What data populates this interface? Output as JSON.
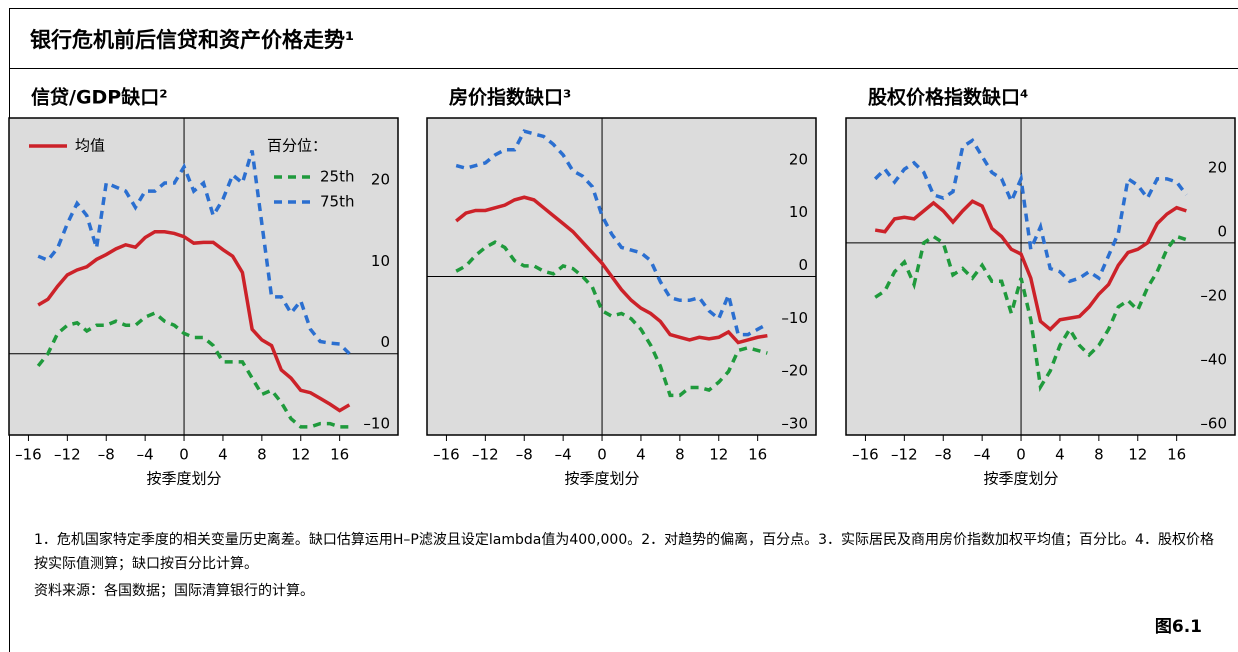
{
  "title": "银行危机前后信贷和资产价格走势¹",
  "chart_data": [
    {
      "type": "line",
      "title": "信贷/GDP缺口²",
      "x_label": "按季度划分",
      "legend": true,
      "legend_title": "百分位：",
      "zero_lines": true,
      "x": [
        -15,
        -14,
        -13,
        -12,
        -11,
        -10,
        -9,
        -8,
        -7,
        -6,
        -5,
        -4,
        -3,
        -2,
        -1,
        0,
        1,
        2,
        3,
        4,
        5,
        6,
        7,
        8,
        9,
        10,
        11,
        12,
        13,
        14,
        15,
        16,
        17
      ],
      "xlim": [
        -18,
        22
      ],
      "ylim": [
        -10,
        29
      ],
      "xticks": [
        {
          "value": -16,
          "label": "–16"
        },
        {
          "value": -12,
          "label": "–12"
        },
        {
          "value": -8,
          "label": "–8"
        },
        {
          "value": -4,
          "label": "–4"
        },
        0,
        4,
        8,
        12,
        16
      ],
      "yticks": [
        {
          "value": -10,
          "label": "–10"
        },
        0,
        10,
        20
      ],
      "series": [
        {
          "name": "均值",
          "color": "#cc2229",
          "dashed": false,
          "values": [
            6,
            6.7,
            8.3,
            9.7,
            10.3,
            10.7,
            11.6,
            12.2,
            12.9,
            13.4,
            13.1,
            14.3,
            15,
            15,
            14.8,
            14.4,
            13.6,
            13.7,
            13.7,
            12.8,
            12,
            10,
            3,
            1.7,
            1,
            -2,
            -3,
            -4.5,
            -4.8,
            -5.5,
            -6.2,
            -7,
            -6.3
          ]
        },
        {
          "name": "25th",
          "color": "#1f9a3c",
          "dashed": true,
          "values": [
            -1.5,
            0,
            2.5,
            3.5,
            3.8,
            2.8,
            3.5,
            3.5,
            4,
            3.5,
            3.5,
            4.5,
            5,
            4,
            3.5,
            2.5,
            2,
            2,
            1,
            -1,
            -1,
            -1,
            -3,
            -5,
            -4.5,
            -6,
            -8,
            -9,
            -9,
            -8.6,
            -8.6,
            -9,
            -9
          ]
        },
        {
          "name": "75th",
          "color": "#2b6fd0",
          "dashed": true,
          "values": [
            12,
            11.5,
            13,
            16,
            18.5,
            17,
            13,
            21,
            20.5,
            20,
            18,
            20,
            20,
            21,
            21,
            23,
            20,
            21,
            17,
            19,
            22,
            21,
            25,
            16,
            7,
            7,
            5,
            6.5,
            3,
            1.5,
            1.3,
            1.2,
            0
          ]
        }
      ]
    },
    {
      "type": "line",
      "title": "房价指数缺口³",
      "x_label": "按季度划分",
      "legend": false,
      "zero_lines": true,
      "x": [
        -15,
        -14,
        -13,
        -12,
        -11,
        -10,
        -9,
        -8,
        -7,
        -6,
        -5,
        -4,
        -3,
        -2,
        -1,
        0,
        1,
        2,
        3,
        4,
        5,
        6,
        7,
        8,
        9,
        10,
        11,
        12,
        13,
        14,
        15,
        16,
        17
      ],
      "xlim": [
        -18,
        22
      ],
      "ylim": [
        -30,
        30
      ],
      "xticks": [
        {
          "value": -16,
          "label": "–16"
        },
        {
          "value": -12,
          "label": "–12"
        },
        {
          "value": -8,
          "label": "–8"
        },
        {
          "value": -4,
          "label": "–4"
        },
        0,
        4,
        8,
        12,
        16
      ],
      "yticks": [
        {
          "value": -30,
          "label": "–30"
        },
        {
          "value": -20,
          "label": "–20"
        },
        {
          "value": -10,
          "label": "–10"
        },
        0,
        10,
        20
      ],
      "series": [
        {
          "name": "均值",
          "color": "#cc2229",
          "dashed": false,
          "values": [
            10.5,
            12,
            12.5,
            12.5,
            13,
            13.5,
            14.5,
            15,
            14.5,
            13,
            11.5,
            10,
            8.5,
            6.5,
            4.5,
            2.5,
            0,
            -2.5,
            -4.5,
            -6,
            -7,
            -8.5,
            -11,
            -11.5,
            -12,
            -11.5,
            -11.8,
            -11.5,
            -10.5,
            -12.5,
            -12,
            -11.5,
            -11.2
          ]
        },
        {
          "name": "25th",
          "color": "#1f9a3c",
          "dashed": true,
          "values": [
            1,
            2,
            4,
            5.5,
            6.5,
            5.5,
            3,
            2,
            2,
            1,
            0.5,
            2,
            1.5,
            0,
            -2,
            -6.5,
            -7.5,
            -7,
            -8,
            -10,
            -13,
            -17,
            -22.5,
            -22.5,
            -21,
            -21,
            -21.5,
            -20,
            -18,
            -14,
            -13.5,
            -14,
            -14.5
          ]
        },
        {
          "name": "75th",
          "color": "#2b6fd0",
          "dashed": true,
          "values": [
            21,
            20.5,
            21,
            21.5,
            23,
            24,
            24,
            27.5,
            27,
            26.5,
            25,
            23,
            20,
            19,
            17,
            11.5,
            8,
            5.5,
            5,
            4.5,
            3,
            -1,
            -4,
            -4.5,
            -4.5,
            -4,
            -6.5,
            -8,
            -3.5,
            -11,
            -11,
            -10,
            -9
          ]
        }
      ]
    },
    {
      "type": "line",
      "title": "股权价格指数缺口⁴",
      "x_label": "按季度划分",
      "legend": false,
      "zero_lines": true,
      "x": [
        -15,
        -14,
        -13,
        -12,
        -11,
        -10,
        -9,
        -8,
        -7,
        -6,
        -5,
        -4,
        -3,
        -2,
        -1,
        0,
        1,
        2,
        3,
        4,
        5,
        6,
        7,
        8,
        9,
        10,
        11,
        12,
        13,
        14,
        15,
        16,
        17
      ],
      "xlim": [
        -18,
        22
      ],
      "ylim": [
        -60,
        39
      ],
      "xticks": [
        {
          "value": -16,
          "label": "–16"
        },
        {
          "value": -12,
          "label": "–12"
        },
        {
          "value": -8,
          "label": "–8"
        },
        {
          "value": -4,
          "label": "–4"
        },
        0,
        4,
        8,
        12,
        16
      ],
      "yticks": [
        {
          "value": -60,
          "label": "–60"
        },
        {
          "value": -40,
          "label": "–40"
        },
        {
          "value": -20,
          "label": "–20"
        },
        0,
        20
      ],
      "series": [
        {
          "name": "均值",
          "color": "#cc2229",
          "dashed": false,
          "values": [
            4,
            3.5,
            7.5,
            8,
            7.5,
            10,
            12.5,
            10,
            6.5,
            10,
            13,
            11.5,
            4.5,
            2,
            -2,
            -3.5,
            -11,
            -24.5,
            -27,
            -24,
            -23.5,
            -23,
            -20,
            -16,
            -13,
            -7,
            -3,
            -2,
            0,
            6,
            9,
            11,
            10
          ]
        },
        {
          "name": "25th",
          "color": "#1f9a3c",
          "dashed": true,
          "values": [
            -17,
            -15,
            -9,
            -6,
            -13,
            0,
            2,
            0,
            -10,
            -8,
            -11,
            -7,
            -12,
            -12,
            -22,
            -11,
            -24,
            -45,
            -40,
            -32,
            -27,
            -32,
            -35,
            -32,
            -27,
            -20,
            -18,
            -21,
            -14,
            -9,
            -2,
            2,
            1
          ]
        },
        {
          "name": "75th",
          "color": "#2b6fd0",
          "dashed": true,
          "values": [
            20,
            23,
            19,
            23,
            25,
            22,
            15,
            14,
            16,
            30,
            32,
            27,
            22,
            20,
            13,
            20,
            -2,
            5,
            -8,
            -9,
            -12,
            -11,
            -9,
            -11,
            -4,
            3,
            20,
            18,
            14,
            20,
            20,
            19,
            15
          ]
        }
      ]
    }
  ],
  "notes": "1．危机国家特定季度的相关变量历史离差。缺口估算运用H–P滤波且设定lambda值为400,000。2．对趋势的偏离，百分点。3．实际居民及商用房价指数加权平均值；百分比。4．股权价格按实际值测算；缺口按百分比计算。",
  "source": "资料来源：各国数据；国际清算银行的计算。",
  "figure_label": "图6.1"
}
